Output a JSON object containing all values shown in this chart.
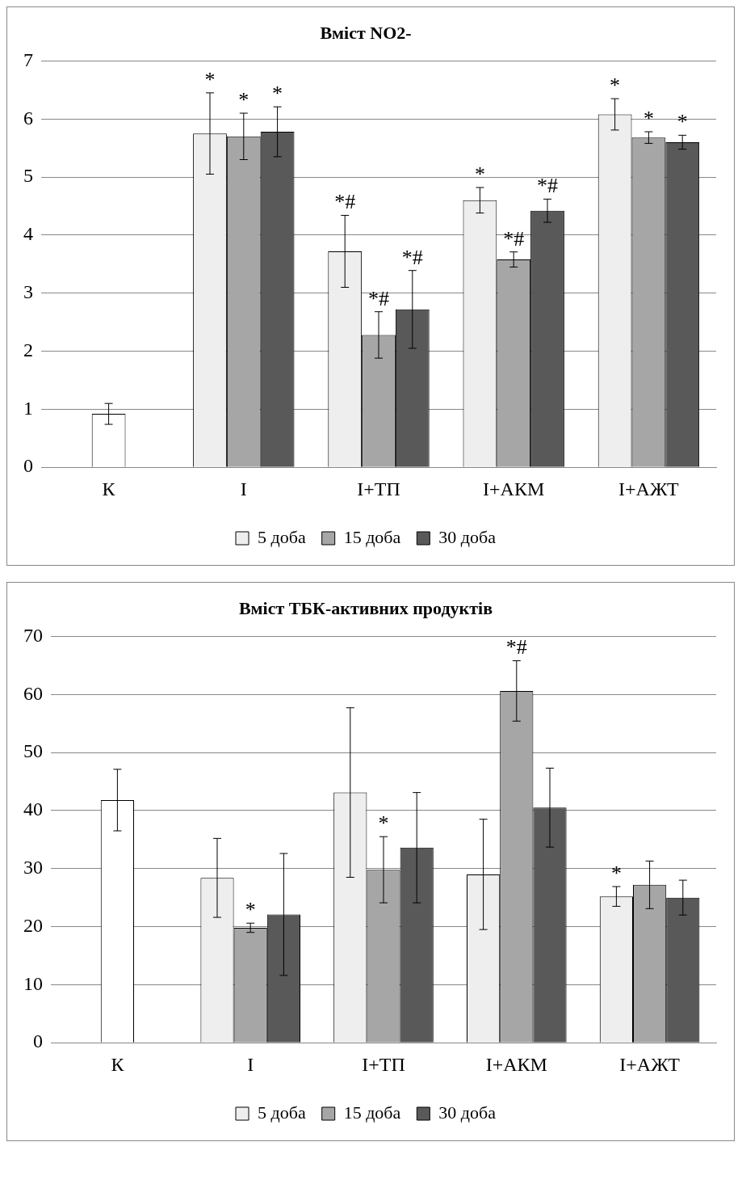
{
  "chart_data": [
    {
      "type": "bar",
      "title": "Вміст NO2-",
      "categories": [
        "К",
        "І",
        "І+ТП",
        "І+АКМ",
        "І+АЖТ"
      ],
      "ylim": [
        0,
        7
      ],
      "yticks": [
        0,
        1,
        2,
        3,
        4,
        5,
        6,
        7
      ],
      "grid": "y",
      "legend": "bottom",
      "series": [
        {
          "name": "5 доба",
          "color": "#eeeeee",
          "values": [
            null,
            5.75,
            3.72,
            4.6,
            6.08
          ],
          "errors": [
            null,
            0.7,
            0.62,
            0.22,
            0.27
          ],
          "value_labels": [
            null,
            "*",
            "*#",
            "*",
            "*"
          ]
        },
        {
          "name": "15 доба",
          "color": "#a6a6a6",
          "values": [
            null,
            5.7,
            2.28,
            3.58,
            5.68
          ],
          "errors": [
            null,
            0.4,
            0.4,
            0.13,
            0.1
          ],
          "value_labels": [
            null,
            "*",
            "*#",
            "*#",
            "*"
          ]
        },
        {
          "name": "30 доба",
          "color": "#595959",
          "values": [
            null,
            5.78,
            2.72,
            4.42,
            5.6
          ],
          "errors": [
            null,
            0.43,
            0.67,
            0.2,
            0.12
          ],
          "value_labels": [
            null,
            "*",
            "*#",
            "*#",
            "*"
          ]
        },
        {
          "color": "#ffffff",
          "values": [
            0.92,
            null,
            null,
            null,
            null
          ],
          "errors": [
            0.18,
            null,
            null,
            null,
            null
          ]
        }
      ]
    },
    {
      "type": "bar",
      "title": "Вміст ТБК-активних продуктів",
      "categories": [
        "К",
        "І",
        "І+ТП",
        "І+АКМ",
        "І+АЖТ"
      ],
      "ylim": [
        0,
        70
      ],
      "yticks": [
        0,
        10,
        20,
        30,
        40,
        50,
        60,
        70
      ],
      "grid": "y",
      "legend": "bottom",
      "series": [
        {
          "name": "5 доба",
          "color": "#eeeeee",
          "values": [
            null,
            28.4,
            43.1,
            29,
            25.2
          ],
          "errors": [
            null,
            6.8,
            14.6,
            9.5,
            1.7
          ],
          "value_labels": [
            null,
            null,
            null,
            null,
            "*"
          ]
        },
        {
          "name": "15 доба",
          "color": "#a6a6a6",
          "values": [
            null,
            19.8,
            29.8,
            60.6,
            27.2
          ],
          "errors": [
            null,
            0.8,
            5.7,
            5.2,
            4.1
          ],
          "value_labels": [
            null,
            "*",
            "*",
            "*#",
            null
          ]
        },
        {
          "name": "30 доба",
          "color": "#595959",
          "values": [
            null,
            22.1,
            33.6,
            40.5,
            25
          ],
          "errors": [
            null,
            10.5,
            9.5,
            6.8,
            3
          ],
          "value_labels": [
            null,
            null,
            null,
            null,
            null
          ]
        },
        {
          "color": "#ffffff",
          "values": [
            41.8,
            null,
            null,
            null,
            null
          ],
          "errors": [
            5.3,
            null,
            null,
            null,
            null
          ]
        }
      ]
    }
  ]
}
